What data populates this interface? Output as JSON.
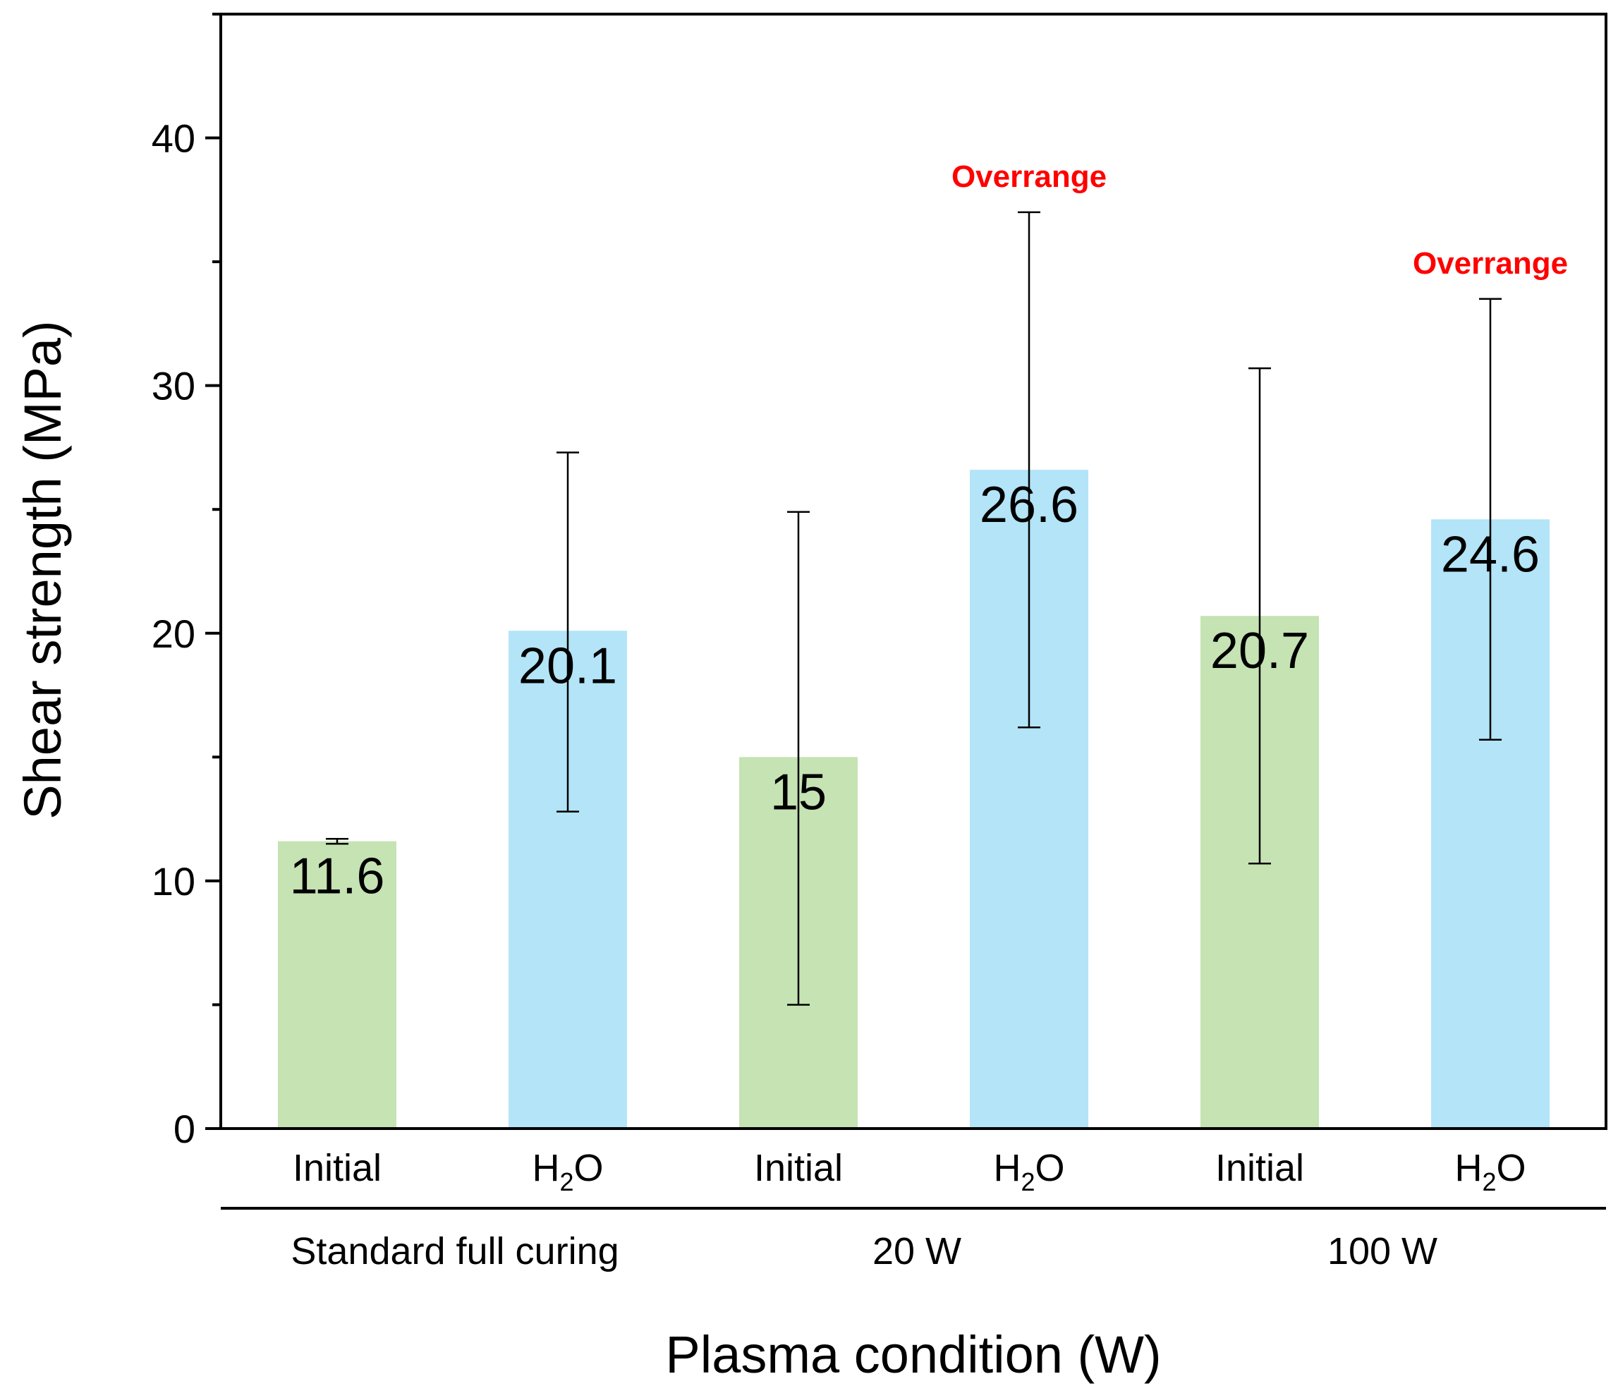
{
  "chart_data": {
    "type": "bar",
    "title": "",
    "ylabel": "Shear strength (MPa)",
    "xlabel": "Plasma condition (W)",
    "ylim": [
      0,
      45
    ],
    "yticks": [
      0,
      10,
      20,
      30,
      40
    ],
    "ytick_labels": [
      "0",
      "10",
      "20",
      "30",
      "40"
    ],
    "grid": false,
    "categories": [
      "Initial",
      "H2O",
      "Initial",
      "H2O",
      "Initial",
      "H2O"
    ],
    "groups": [
      {
        "label": "Standard full curing",
        "bar_indices": [
          0,
          1
        ]
      },
      {
        "label": "20 W",
        "bar_indices": [
          2,
          3
        ]
      },
      {
        "label": "100 W",
        "bar_indices": [
          4,
          5
        ]
      }
    ],
    "values": [
      11.6,
      20.1,
      15,
      26.6,
      20.7,
      24.6
    ],
    "value_labels": [
      "11.6",
      "20.1",
      "15",
      "26.6",
      "20.7",
      "24.6"
    ],
    "error_bars": [
      {
        "low": 11.5,
        "high": 11.7
      },
      {
        "low": 12.8,
        "high": 27.3
      },
      {
        "low": 5.0,
        "high": 24.9
      },
      {
        "low": 16.2,
        "high": 37.0
      },
      {
        "low": 10.7,
        "high": 30.7
      },
      {
        "low": 15.7,
        "high": 33.5
      }
    ],
    "annotations": [
      {
        "text": "Overrange",
        "bar_index": 3,
        "color": "#ff0000"
      },
      {
        "text": "Overrange",
        "bar_index": 5,
        "color": "#ff0000"
      }
    ],
    "colors": {
      "Initial": "#c5e3b3",
      "H2O": "#b3e4f8",
      "axis": "#000000",
      "annotation": "#ff0000"
    }
  }
}
